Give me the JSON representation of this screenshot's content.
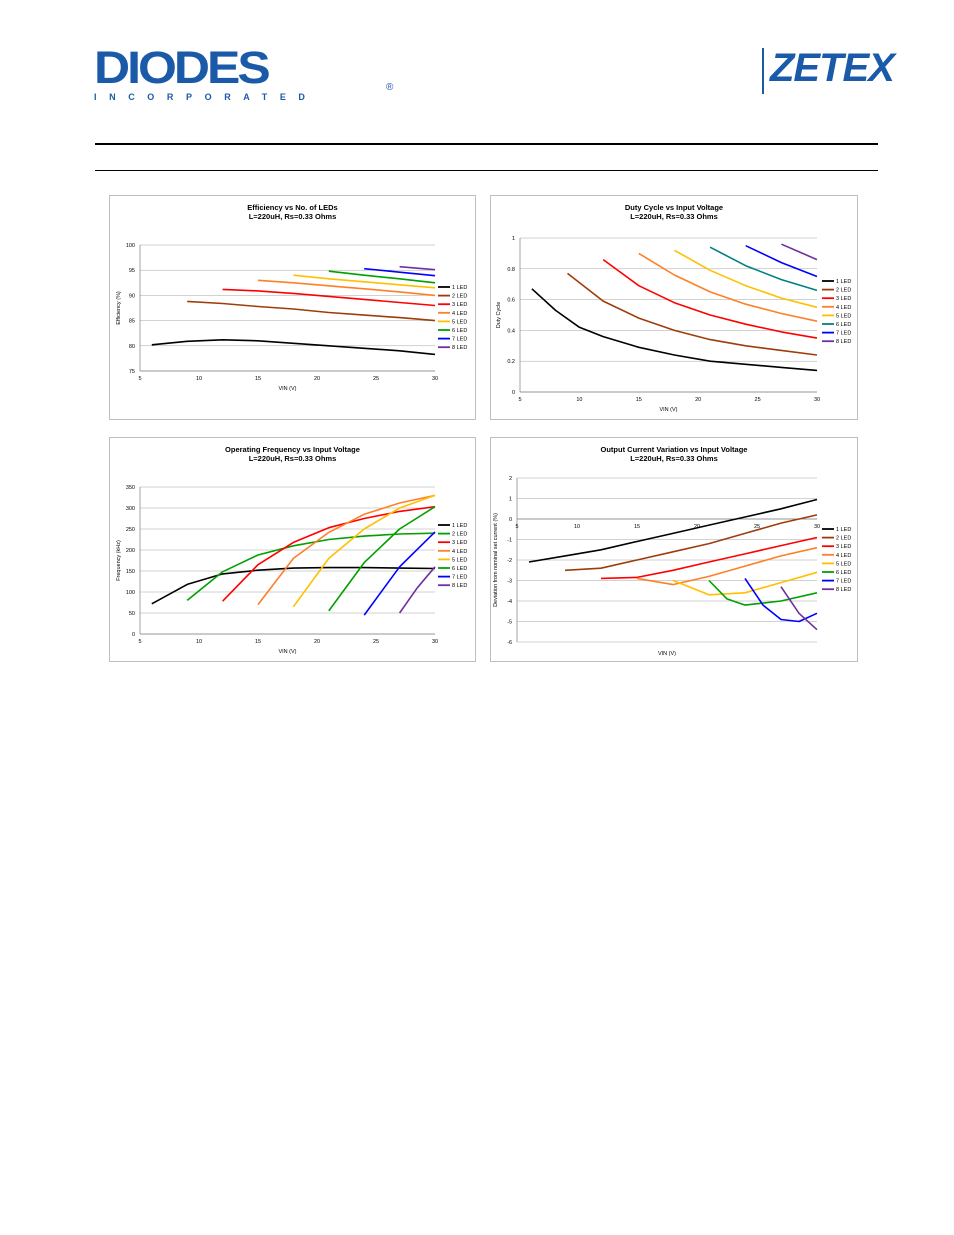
{
  "header": {
    "left_logo_text": "DIODES",
    "left_logo_sub": "INCORPORATED",
    "left_logo_mark": "®",
    "right_logo_text": "ZETEX"
  },
  "charts": [
    {
      "type": "line",
      "title": "Efficiency vs No. of LEDs",
      "subtitle": "L=220uH, Rs=0.33 Ohms",
      "xlabel": "VIN (V)",
      "ylabel": "Efficiency (%)",
      "xlim": [
        5,
        30
      ],
      "ylim": [
        75,
        100
      ],
      "xticks": [
        5,
        10,
        15,
        20,
        25,
        30
      ],
      "yticks": [
        75,
        80,
        85,
        90,
        95,
        100
      ],
      "ytick_labels": [
        "75",
        "80",
        "85",
        "90",
        "95",
        "100"
      ],
      "legend": "right",
      "series": [
        {
          "name": "1 LED",
          "color": "#000000",
          "x": [
            6,
            9,
            12,
            15,
            18,
            21,
            24,
            27,
            30
          ],
          "y": [
            80.2,
            80.9,
            81.2,
            81.0,
            80.5,
            80.0,
            79.5,
            79.0,
            78.3
          ]
        },
        {
          "name": "2 LED",
          "color": "#9e3d0a",
          "x": [
            9,
            12,
            15,
            18,
            21,
            24,
            27,
            30
          ],
          "y": [
            88.8,
            88.4,
            87.8,
            87.3,
            86.6,
            86.1,
            85.6,
            85.0
          ]
        },
        {
          "name": "3 LED",
          "color": "#ff0000",
          "x": [
            12,
            15,
            18,
            21,
            24,
            27,
            30
          ],
          "y": [
            91.2,
            90.9,
            90.4,
            89.8,
            89.2,
            88.6,
            88.0
          ]
        },
        {
          "name": "4 LED",
          "color": "#ff7f27",
          "x": [
            15,
            18,
            21,
            24,
            27,
            30
          ],
          "y": [
            93.0,
            92.5,
            91.9,
            91.3,
            90.7,
            90.0
          ]
        },
        {
          "name": "5 LED",
          "color": "#ffc000",
          "x": [
            18,
            21,
            24,
            27,
            30
          ],
          "y": [
            94.0,
            93.3,
            92.7,
            92.1,
            91.5
          ]
        },
        {
          "name": "6 LED",
          "color": "#00a000",
          "x": [
            21,
            24,
            27,
            30
          ],
          "y": [
            94.8,
            94.0,
            93.3,
            92.5
          ]
        },
        {
          "name": "7 LED",
          "color": "#0000ff",
          "x": [
            24,
            27,
            30
          ],
          "y": [
            95.3,
            94.6,
            93.9
          ]
        },
        {
          "name": "8 LED",
          "color": "#7030a0",
          "x": [
            27,
            28.5,
            30
          ],
          "y": [
            95.7,
            95.4,
            95.1
          ]
        }
      ]
    },
    {
      "type": "line",
      "title": "Duty Cycle vs Input Voltage",
      "subtitle": "L=220uH, Rs=0.33 Ohms",
      "xlabel": "VIN (V)",
      "ylabel": "Duty Cycle",
      "xlim": [
        5,
        30
      ],
      "ylim": [
        0,
        1
      ],
      "xticks": [
        5,
        10,
        15,
        20,
        25,
        30
      ],
      "yticks": [
        0,
        0.2,
        0.4,
        0.6,
        0.8,
        1
      ],
      "ytick_labels": [
        "0",
        "0.2",
        "0.4",
        "0.6",
        "0.8",
        "1"
      ],
      "legend": "right",
      "series": [
        {
          "name": "1 LED",
          "color": "#000000",
          "x": [
            6,
            8,
            10,
            12,
            15,
            18,
            21,
            24,
            27,
            30
          ],
          "y": [
            0.67,
            0.53,
            0.42,
            0.36,
            0.29,
            0.24,
            0.2,
            0.18,
            0.16,
            0.14
          ]
        },
        {
          "name": "2 LED",
          "color": "#9e3d0a",
          "x": [
            9,
            12,
            15,
            18,
            21,
            24,
            27,
            30
          ],
          "y": [
            0.77,
            0.59,
            0.48,
            0.4,
            0.34,
            0.3,
            0.27,
            0.24
          ]
        },
        {
          "name": "3 LED",
          "color": "#ff0000",
          "x": [
            12,
            15,
            18,
            21,
            24,
            27,
            30
          ],
          "y": [
            0.86,
            0.69,
            0.58,
            0.5,
            0.44,
            0.39,
            0.35
          ]
        },
        {
          "name": "4 LED",
          "color": "#ff7f27",
          "x": [
            15,
            18,
            21,
            24,
            27,
            30
          ],
          "y": [
            0.9,
            0.76,
            0.65,
            0.57,
            0.51,
            0.46
          ]
        },
        {
          "name": "5 LED",
          "color": "#ffc000",
          "x": [
            18,
            21,
            24,
            27,
            30
          ],
          "y": [
            0.92,
            0.79,
            0.69,
            0.61,
            0.55
          ]
        },
        {
          "name": "6 LED",
          "color": "#008080",
          "x": [
            21,
            24,
            27,
            30
          ],
          "y": [
            0.94,
            0.82,
            0.73,
            0.66
          ]
        },
        {
          "name": "7 LED",
          "color": "#0000ff",
          "x": [
            24,
            27,
            30
          ],
          "y": [
            0.95,
            0.84,
            0.75
          ]
        },
        {
          "name": "8 LED",
          "color": "#7030a0",
          "x": [
            27,
            28.5,
            30
          ],
          "y": [
            0.96,
            0.91,
            0.86
          ]
        }
      ]
    },
    {
      "type": "line",
      "title": "Operating Frequency vs Input Voltage",
      "subtitle": "L=220uH, Rs=0.33 Ohms",
      "xlabel": "VIN (V)",
      "ylabel": "Frequency (kHz)",
      "xlim": [
        5,
        30
      ],
      "ylim": [
        0,
        350
      ],
      "xticks": [
        5,
        10,
        15,
        20,
        25,
        30
      ],
      "yticks": [
        0,
        50,
        100,
        150,
        200,
        250,
        300,
        350
      ],
      "ytick_labels": [
        "0",
        "50",
        "100",
        "150",
        "200",
        "250",
        "300",
        "350"
      ],
      "legend": "right",
      "series": [
        {
          "name": "1 LED",
          "color": "#000000",
          "x": [
            6,
            9,
            12,
            15,
            18,
            21,
            24,
            27,
            30
          ],
          "y": [
            72,
            118,
            143,
            152,
            157,
            158,
            158,
            157,
            156
          ]
        },
        {
          "name": "2 LED",
          "color": "#00a000",
          "x": [
            9,
            12,
            15,
            18,
            21,
            24,
            27,
            30
          ],
          "y": [
            80,
            148,
            188,
            210,
            225,
            233,
            238,
            240
          ]
        },
        {
          "name": "3 LED",
          "color": "#ff0000",
          "x": [
            12,
            15,
            18,
            21,
            24,
            27,
            30
          ],
          "y": [
            78,
            165,
            218,
            253,
            275,
            292,
            303
          ]
        },
        {
          "name": "4 LED",
          "color": "#ff7f27",
          "x": [
            15,
            18,
            21,
            24,
            27,
            30
          ],
          "y": [
            70,
            180,
            242,
            285,
            312,
            330
          ]
        },
        {
          "name": "5 LED",
          "color": "#ffc000",
          "x": [
            18,
            21,
            24,
            27,
            30
          ],
          "y": [
            65,
            180,
            250,
            300,
            330
          ]
        },
        {
          "name": "6 LED",
          "color": "#00a000",
          "x": [
            21,
            24,
            27,
            30
          ],
          "y": [
            55,
            170,
            250,
            303
          ]
        },
        {
          "name": "7 LED",
          "color": "#0000ff",
          "x": [
            24,
            27,
            30
          ],
          "y": [
            45,
            160,
            243
          ]
        },
        {
          "name": "8 LED",
          "color": "#7030a0",
          "x": [
            27,
            28.5,
            30
          ],
          "y": [
            50,
            110,
            160
          ]
        }
      ]
    },
    {
      "type": "line",
      "title": "Output Current Variation vs Input Voltage",
      "subtitle": "L=220uH, Rs=0.33 Ohms",
      "xlabel": "VIN (V)",
      "ylabel": "Deviation from nominal set current (%)",
      "xlim": [
        5,
        30
      ],
      "ylim": [
        -6,
        2
      ],
      "xticks": [
        5,
        10,
        15,
        20,
        25,
        30
      ],
      "yticks": [
        -6,
        -5,
        -4,
        -3,
        -2,
        -1,
        0,
        1,
        2
      ],
      "ytick_labels": [
        "-6",
        "-5",
        "-4",
        "-3",
        "-2",
        "-1",
        "0",
        "1",
        "2"
      ],
      "legend": "right",
      "series": [
        {
          "name": "1 LED",
          "color": "#000000",
          "x": [
            6,
            9,
            12,
            15,
            18,
            21,
            24,
            27,
            30
          ],
          "y": [
            -2.1,
            -1.8,
            -1.5,
            -1.1,
            -0.7,
            -0.3,
            0.1,
            0.5,
            0.95
          ]
        },
        {
          "name": "2 LED",
          "color": "#9e3d0a",
          "x": [
            9,
            12,
            15,
            18,
            21,
            24,
            27,
            30
          ],
          "y": [
            -2.5,
            -2.4,
            -2.0,
            -1.6,
            -1.2,
            -0.7,
            -0.2,
            0.2
          ]
        },
        {
          "name": "3 LED",
          "color": "#ff0000",
          "x": [
            12,
            15,
            18,
            21,
            24,
            27,
            30
          ],
          "y": [
            -2.9,
            -2.85,
            -2.5,
            -2.1,
            -1.7,
            -1.3,
            -0.9
          ]
        },
        {
          "name": "4 LED",
          "color": "#ff7f27",
          "x": [
            15,
            18,
            21,
            24,
            27,
            30
          ],
          "y": [
            -2.9,
            -3.2,
            -2.8,
            -2.3,
            -1.8,
            -1.4
          ]
        },
        {
          "name": "5 LED",
          "color": "#ffc000",
          "x": [
            18,
            21,
            24,
            27,
            30
          ],
          "y": [
            -3.0,
            -3.7,
            -3.6,
            -3.1,
            -2.6
          ]
        },
        {
          "name": "6 LED",
          "color": "#00a000",
          "x": [
            21,
            22.5,
            24,
            27,
            30
          ],
          "y": [
            -3.0,
            -3.9,
            -4.2,
            -4.0,
            -3.6
          ]
        },
        {
          "name": "7 LED",
          "color": "#0000ff",
          "x": [
            24,
            25.5,
            27,
            28.5,
            30
          ],
          "y": [
            -2.9,
            -4.2,
            -4.9,
            -5.0,
            -4.6
          ]
        },
        {
          "name": "8 LED",
          "color": "#7030a0",
          "x": [
            27,
            28.5,
            30
          ],
          "y": [
            -3.3,
            -4.6,
            -5.4
          ]
        }
      ]
    }
  ]
}
